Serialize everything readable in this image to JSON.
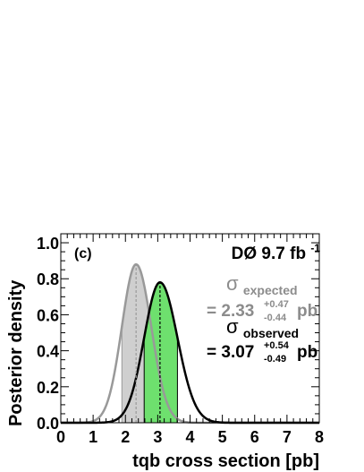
{
  "chart_data": {
    "type": "line",
    "panel_label": "(c)",
    "experiment": "DØ 9.7 fb",
    "experiment_superscript": "-1",
    "xlabel": "tqb cross section [pb]",
    "ylabel": "Posterior density",
    "xlim": [
      0,
      8
    ],
    "ylim": [
      0,
      1.05
    ],
    "xticks": [
      "0",
      "1",
      "2",
      "3",
      "4",
      "5",
      "6",
      "7",
      "8"
    ],
    "yticks": [
      "0.0",
      "0.2",
      "0.4",
      "0.6",
      "0.8",
      "1.0"
    ],
    "grid": false,
    "series": [
      {
        "key": "expected",
        "color": "#999999",
        "fill_color": "#cfcfcf",
        "mean": 2.33,
        "sigma_up": 0.47,
        "sigma_down": 0.44,
        "peak": 0.88,
        "band": [
          1.89,
          2.8
        ]
      },
      {
        "key": "observed",
        "color": "#000000",
        "fill_color": "#6ee06e",
        "mean": 3.07,
        "sigma_up": 0.54,
        "sigma_down": 0.49,
        "peak": 0.78,
        "band": [
          2.58,
          3.61
        ]
      }
    ],
    "annotations": {
      "expected": {
        "sigma": "σ",
        "subscript": "expected",
        "prefix": "= 2.33",
        "sup": "+0.47",
        "sub": "-0.44",
        "unit": "pb",
        "color": "#8c8c8c"
      },
      "observed": {
        "sigma": "σ",
        "subscript": "observed",
        "prefix": "= 3.07",
        "sup": "+0.54",
        "sub": "-0.49",
        "unit": "pb",
        "color": "#000000"
      }
    }
  }
}
